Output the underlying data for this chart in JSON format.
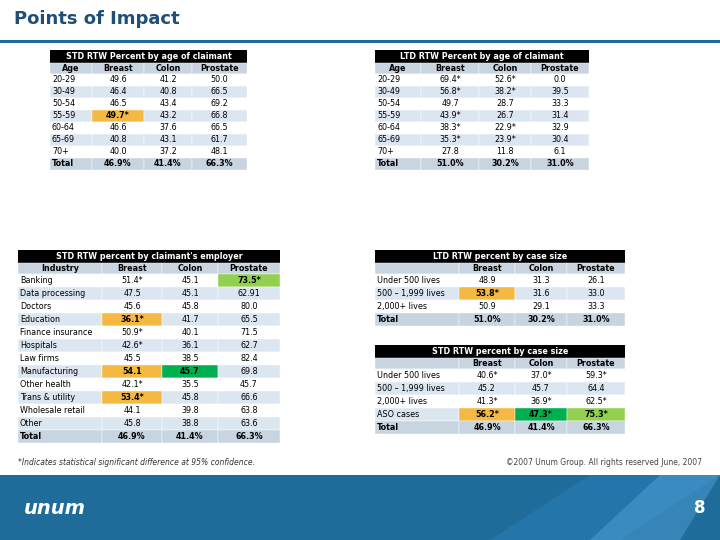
{
  "title": "Points of Impact",
  "bg_color": "#ffffff",
  "title_color": "#1F4E79",
  "blue_bar_color": "#1F6B9A",
  "orange_highlight": "#f4b942",
  "green_highlight": "#92d050",
  "teal_highlight": "#00b050",
  "footer_text": "*Indicates statistical significant difference at 95% confidence.",
  "copyright_text": "©2007 Unum Group. All rights reserved June, 2007",
  "page_number": "8",
  "table1_title": "STD RTW Percent by age of claimant",
  "table1_col_headers": [
    "Age",
    "Breast",
    "Colon",
    "Prostate"
  ],
  "table1_rows": [
    [
      "20-29",
      "49.6",
      "41.2",
      "50.0"
    ],
    [
      "30-49",
      "46.4",
      "40.8",
      "66.5"
    ],
    [
      "50-54",
      "46.5",
      "43.4",
      "69.2"
    ],
    [
      "55-59",
      "49.7*",
      "43.2",
      "66.8"
    ],
    [
      "60-64",
      "46.6",
      "37.6",
      "66.5"
    ],
    [
      "65-69",
      "40.8",
      "43.1",
      "61.7"
    ],
    [
      "70+",
      "40.0",
      "37.2",
      "48.1"
    ],
    [
      "Total",
      "46.9%",
      "41.4%",
      "66.3%"
    ]
  ],
  "table1_highlights": {
    "3_1": "orange"
  },
  "table2_title": "LTD RTW Percent by age of claimant",
  "table2_col_headers": [
    "Age",
    "Breast",
    "Colon",
    "Prostate"
  ],
  "table2_rows": [
    [
      "20-29",
      "69.4*",
      "52.6*",
      "0.0"
    ],
    [
      "30-49",
      "56.8*",
      "38.2*",
      "39.5"
    ],
    [
      "50-54",
      "49.7",
      "28.7",
      "33.3"
    ],
    [
      "55-59",
      "43.9*",
      "26.7",
      "31.4"
    ],
    [
      "60-64",
      "38.3*",
      "22.9*",
      "32.9"
    ],
    [
      "65-69",
      "35.3*",
      "23.9*",
      "30.4"
    ],
    [
      "70+",
      "27.8",
      "11.8",
      "6.1"
    ],
    [
      "Total",
      "51.0%",
      "30.2%",
      "31.0%"
    ]
  ],
  "table2_highlights": {},
  "table3_title": "STD RTW percent by claimant's employer",
  "table3_col_headers": [
    "Industry",
    "Breast",
    "Colon",
    "Prostate"
  ],
  "table3_rows": [
    [
      "Banking",
      "51.4*",
      "45.1",
      "73.5*"
    ],
    [
      "Data processing",
      "47.5",
      "45.1",
      "62.91"
    ],
    [
      "Doctors",
      "45.6",
      "45.8",
      "80.0"
    ],
    [
      "Education",
      "36.1*",
      "41.7",
      "65.5"
    ],
    [
      "Finance insurance",
      "50.9*",
      "40.1",
      "71.5"
    ],
    [
      "Hospitals",
      "42.6*",
      "36.1",
      "62.7"
    ],
    [
      "Law firms",
      "45.5",
      "38.5",
      "82.4"
    ],
    [
      "Manufacturing",
      "54.1",
      "45.7",
      "69.8"
    ],
    [
      "Other health",
      "42.1*",
      "35.5",
      "45.7"
    ],
    [
      "Trans & utility",
      "53.4*",
      "45.8",
      "66.6"
    ],
    [
      "Wholesale retail",
      "44.1",
      "39.8",
      "63.8"
    ],
    [
      "Other",
      "45.8",
      "38.8",
      "63.6"
    ],
    [
      "Total",
      "46.9%",
      "41.4%",
      "66.3%"
    ]
  ],
  "table3_highlights": {
    "0_3": "green",
    "3_1": "orange",
    "7_1": "orange",
    "7_2": "teal",
    "9_1": "orange"
  },
  "table4_title": "LTD RTW percent by case size",
  "table4_col_headers": [
    "",
    "Breast",
    "Colon",
    "Prostate"
  ],
  "table4_rows": [
    [
      "Under 500 lives",
      "48.9",
      "31.3",
      "26.1"
    ],
    [
      "500 – 1,999 lives",
      "53.8*",
      "31.6",
      "33.0"
    ],
    [
      "2,000+ lives",
      "50.9",
      "29.1",
      "33.3"
    ],
    [
      "Total",
      "51.0%",
      "30.2%",
      "31.0%"
    ]
  ],
  "table4_highlights": {
    "1_1": "orange"
  },
  "table5_title": "STD RTW percent by case size",
  "table5_col_headers": [
    "",
    "Breast",
    "Colon",
    "Prostate"
  ],
  "table5_rows": [
    [
      "Under 500 lives",
      "40.6*",
      "37.0*",
      "59.3*"
    ],
    [
      "500 – 1,999 lives",
      "45.2",
      "45.7",
      "64.4"
    ],
    [
      "2,000+ lives",
      "41.3*",
      "36.9*",
      "62.5*"
    ],
    [
      "ASO cases",
      "56.2*",
      "47.3*",
      "75.3*"
    ],
    [
      "Total",
      "46.9%",
      "41.4%",
      "66.3%"
    ]
  ],
  "table5_highlights": {
    "3_1": "orange",
    "3_2": "teal",
    "3_3": "green"
  }
}
